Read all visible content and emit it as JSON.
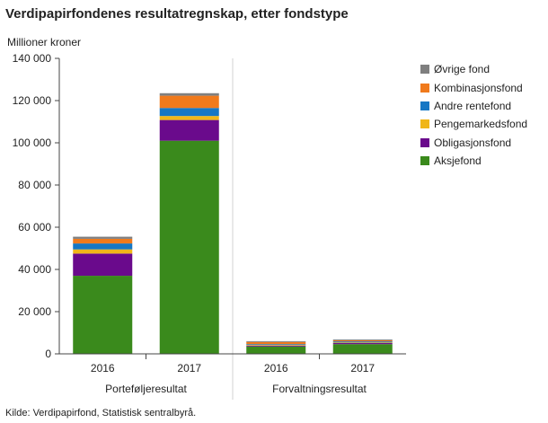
{
  "chart_data": {
    "type": "bar",
    "stacked": true,
    "title": "Verdipapirfondenes resultatregnskap, etter fondstype",
    "ylabel": "Millioner  kroner",
    "ylim": [
      0,
      140000
    ],
    "yticks": [
      0,
      20000,
      40000,
      60000,
      80000,
      100000,
      120000,
      140000
    ],
    "ytick_labels": [
      "0",
      "20 000",
      "40 000",
      "60 000",
      "80 000",
      "100 000",
      "120 000",
      "140 000"
    ],
    "grid": false,
    "legend_position": "right",
    "groups": [
      "Porteføljeresultat",
      "Forvaltningsresultat"
    ],
    "categories": [
      "2016",
      "2017",
      "2016",
      "2017"
    ],
    "category_group": [
      0,
      0,
      1,
      1
    ],
    "series": [
      {
        "name": "Aksjefond",
        "color": "#3a8a1c",
        "values": [
          37000,
          101000,
          3500,
          4600
        ]
      },
      {
        "name": "Obligasjonsfond",
        "color": "#6a0a8c",
        "values": [
          10500,
          9800,
          400,
          500
        ]
      },
      {
        "name": "Pengemarkedsfond",
        "color": "#f0b619",
        "values": [
          2000,
          1900,
          300,
          300
        ]
      },
      {
        "name": "Andre rentefond",
        "color": "#1677c4",
        "values": [
          2800,
          3800,
          400,
          500
        ]
      },
      {
        "name": "Kombinasjonsfond",
        "color": "#f07a1c",
        "values": [
          2200,
          5800,
          1000,
          500
        ]
      },
      {
        "name": "Øvrige fond",
        "color": "#7f7f7f",
        "values": [
          1000,
          1200,
          400,
          400
        ]
      }
    ]
  },
  "source": "Kilde: Verdipapirfond, Statistisk sentralbyrå."
}
